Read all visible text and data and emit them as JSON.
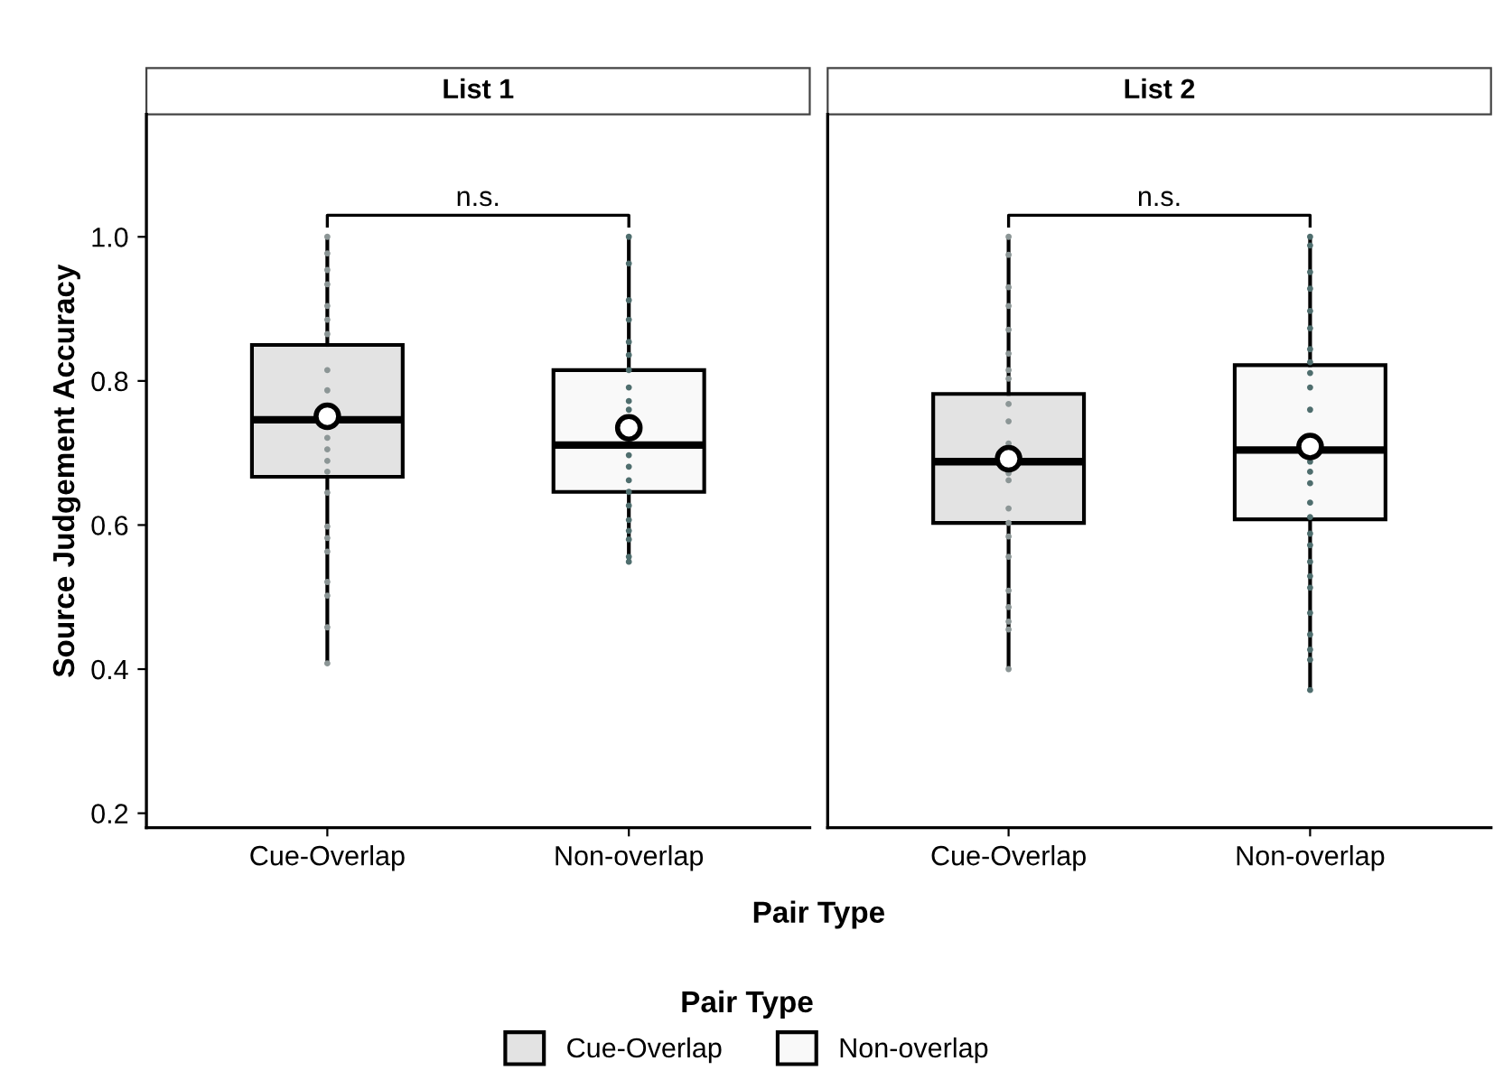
{
  "chart_data": [
    {
      "type": "box",
      "title": "List 1",
      "ylabel": "Source Judgement Accuracy",
      "xlabel": "Pair Type",
      "categories": [
        "Cue-Overlap",
        "Non-overlap"
      ],
      "ylim": [
        0.18,
        1.17
      ],
      "yticks": [
        0.2,
        0.4,
        0.6,
        0.8,
        {
          "value": 1,
          "label": "1.0"
        }
      ],
      "grid": false,
      "annotations": [
        "n.s."
      ],
      "series": [
        {
          "type": "box",
          "color": "#e3e3e3",
          "boxes": [
            {
              "low": 0.408,
              "q1": 0.667,
              "median": 0.746,
              "q3": 0.85,
              "high": 1.0,
              "mean": 0.751
            },
            null
          ]
        },
        {
          "type": "box",
          "color": "#f9f9f9",
          "boxes": [
            null,
            {
              "low": 0.549,
              "q1": 0.646,
              "median": 0.711,
              "q3": 0.815,
              "high": 1.0,
              "mean": 0.735
            }
          ]
        },
        {
          "type": "scatter",
          "color": "#8c9696",
          "x": [
            "Cue-Overlap",
            "Cue-Overlap",
            "Cue-Overlap",
            "Cue-Overlap",
            "Cue-Overlap",
            "Cue-Overlap",
            "Cue-Overlap",
            "Cue-Overlap",
            "Cue-Overlap",
            "Cue-Overlap",
            "Cue-Overlap",
            "Cue-Overlap",
            "Cue-Overlap",
            "Cue-Overlap",
            "Cue-Overlap",
            "Cue-Overlap",
            "Cue-Overlap",
            "Cue-Overlap",
            "Cue-Overlap",
            "Cue-Overlap",
            "Cue-Overlap",
            "Cue-Overlap"
          ],
          "values": [
            1.0,
            0.977,
            0.954,
            0.934,
            0.904,
            0.885,
            0.865,
            0.815,
            0.787,
            null,
            0.721,
            0.705,
            0.689,
            0.674,
            0.645,
            0.598,
            0.582,
            0.563,
            0.521,
            0.502,
            0.458,
            0.408
          ]
        },
        {
          "type": "scatter",
          "color": "#4f6e6e",
          "x": [
            "Non-overlap",
            "Non-overlap",
            "Non-overlap",
            "Non-overlap",
            "Non-overlap",
            "Non-overlap",
            "Non-overlap",
            "Non-overlap",
            "Non-overlap",
            "Non-overlap",
            "Non-overlap",
            "Non-overlap",
            "Non-overlap",
            "Non-overlap",
            "Non-overlap",
            "Non-overlap",
            "Non-overlap",
            "Non-overlap",
            "Non-overlap",
            "Non-overlap"
          ],
          "values": [
            1.0,
            0.963,
            0.912,
            0.885,
            0.854,
            0.836,
            0.815,
            0.791,
            0.772,
            0.76,
            0.697,
            0.681,
            0.662,
            0.646,
            0.627,
            0.607,
            0.592,
            0.58,
            0.556,
            0.549
          ]
        }
      ]
    },
    {
      "type": "box",
      "title": "List 2",
      "categories": [
        "Cue-Overlap",
        "Non-overlap"
      ],
      "ylim": [
        0.18,
        1.17
      ],
      "tick_labels": "x",
      "grid": false,
      "annotations": [
        "n.s."
      ],
      "legend": "bottom",
      "legend_title": "Pair Type",
      "series": [
        {
          "type": "box",
          "name": "Cue-Overlap",
          "color": "#e3e3e3",
          "boxes": [
            {
              "low": 0.4,
              "q1": 0.603,
              "median": 0.688,
              "q3": 0.782,
              "high": 1.0,
              "mean": 0.692
            },
            null
          ]
        },
        {
          "type": "box",
          "name": "Non-overlap",
          "color": "#f9f9f9",
          "boxes": [
            null,
            {
              "low": 0.371,
              "q1": 0.608,
              "median": 0.704,
              "q3": 0.822,
              "high": 1.0,
              "mean": 0.709
            }
          ]
        },
        {
          "type": "scatter",
          "color": "#8c9696",
          "x": [
            "Cue-Overlap",
            "Cue-Overlap",
            "Cue-Overlap",
            "Cue-Overlap",
            "Cue-Overlap",
            "Cue-Overlap",
            "Cue-Overlap",
            "Cue-Overlap",
            "Cue-Overlap",
            "Cue-Overlap",
            "Cue-Overlap",
            "Cue-Overlap",
            "Cue-Overlap",
            "Cue-Overlap",
            "Cue-Overlap",
            "Cue-Overlap",
            "Cue-Overlap",
            "Cue-Overlap",
            "Cue-Overlap",
            "Cue-Overlap",
            "Cue-Overlap",
            "Cue-Overlap"
          ],
          "values": [
            1.0,
            0.975,
            0.93,
            0.904,
            0.871,
            0.838,
            0.815,
            0.803,
            0.768,
            0.744,
            0.713,
            0.672,
            0.662,
            0.623,
            0.603,
            0.584,
            0.556,
            0.509,
            0.486,
            0.466,
            0.455,
            0.4
          ]
        },
        {
          "type": "scatter",
          "color": "#4f6e6e",
          "x": [
            "Non-overlap",
            "Non-overlap",
            "Non-overlap",
            "Non-overlap",
            "Non-overlap",
            "Non-overlap",
            "Non-overlap",
            "Non-overlap",
            "Non-overlap",
            "Non-overlap",
            "Non-overlap",
            "Non-overlap",
            "Non-overlap",
            "Non-overlap",
            "Non-overlap",
            "Non-overlap",
            "Non-overlap",
            "Non-overlap",
            "Non-overlap",
            "Non-overlap",
            "Non-overlap",
            "Non-overlap",
            "Non-overlap",
            "Non-overlap",
            "Non-overlap",
            "Non-overlap",
            "Non-overlap"
          ],
          "values": [
            1.0,
            0.988,
            0.951,
            0.928,
            0.897,
            0.873,
            0.844,
            0.826,
            0.811,
            0.791,
            0.76,
            null,
            0.688,
            0.674,
            0.658,
            0.631,
            0.611,
            0.588,
            0.572,
            0.549,
            0.529,
            0.513,
            0.478,
            0.448,
            0.427,
            0.413,
            0.371
          ]
        }
      ]
    }
  ]
}
